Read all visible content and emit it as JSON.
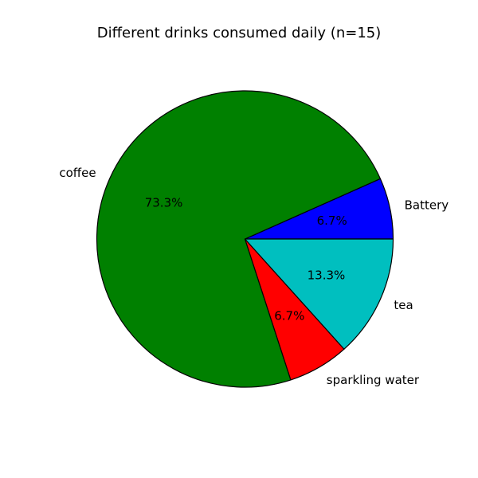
{
  "chart_data": {
    "type": "pie",
    "title": "Different drinks consumed daily (n=15)",
    "start_angle_deg": 0,
    "direction": "counterclockwise",
    "slices": [
      {
        "label": "Battery",
        "value": 1,
        "pct_label": "6.7%",
        "color": "#0000ff"
      },
      {
        "label": "coffee",
        "value": 11,
        "pct_label": "73.3%",
        "color": "#008000"
      },
      {
        "label": "sparkling water",
        "value": 1,
        "pct_label": "6.7%",
        "color": "#ff0000"
      },
      {
        "label": "tea",
        "value": 2,
        "pct_label": "13.3%",
        "color": "#00bfbf"
      }
    ]
  }
}
